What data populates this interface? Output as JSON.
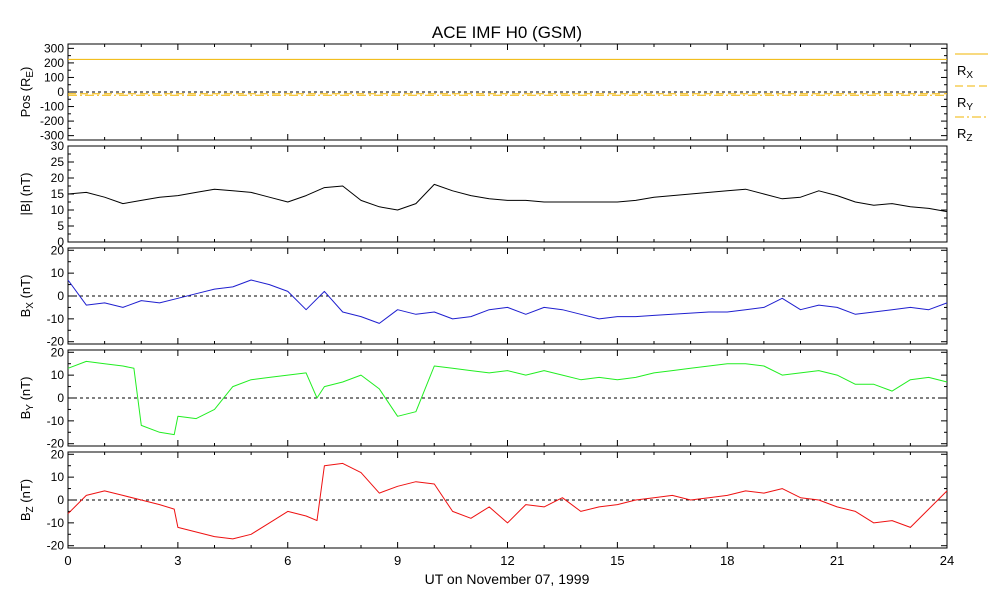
{
  "chart_data": {
    "type": "line",
    "title": "ACE IMF H0 (GSM)",
    "xlabel": "UT on November 07, 1999",
    "x_range": [
      0,
      24
    ],
    "x_ticks": [
      "0",
      "3",
      "6",
      "9",
      "12",
      "15",
      "18",
      "21",
      "24"
    ],
    "x_tick_values": [
      0,
      3,
      6,
      9,
      12,
      15,
      18,
      21,
      24
    ],
    "panels": [
      {
        "id": "pos",
        "ylabel": "Pos (R",
        "ylabel_sub": "E",
        "ylabel_suffix": ")",
        "ylim": [
          -330,
          330
        ],
        "yticks": [
          {
            "value": 300,
            "label": "300"
          },
          {
            "value": 200,
            "label": "200"
          },
          {
            "value": 100,
            "label": "100"
          },
          {
            "value": 0,
            "label": "0"
          },
          {
            "value": -100,
            "label": "-100"
          },
          {
            "value": -200,
            "label": "-200"
          },
          {
            "value": -300,
            "label": "-300"
          }
        ],
        "zero_line": true,
        "series": [
          {
            "label_main": "R",
            "label_sub": "X",
            "color": "#f0b400",
            "dash": "solid",
            "x": [
              0,
              6,
              12,
              18,
              24
            ],
            "values": [
              224,
              224,
              224,
              224,
              224
            ]
          },
          {
            "label_main": "R",
            "label_sub": "Y",
            "color": "#f0b400",
            "dash": "dashed",
            "x": [
              0,
              6,
              12,
              18,
              24
            ],
            "values": [
              -12,
              -12,
              -12,
              -12,
              -12
            ]
          },
          {
            "label_main": "R",
            "label_sub": "Z",
            "color": "#f0b400",
            "dash": "dashdot",
            "x": [
              0,
              6,
              12,
              18,
              24
            ],
            "values": [
              -22,
              -22,
              -22,
              -22,
              -22
            ]
          }
        ]
      },
      {
        "id": "bt",
        "ylabel": "|B| (nT)",
        "ylim": [
          0,
          30
        ],
        "yticks": [
          {
            "value": 30,
            "label": "30"
          },
          {
            "value": 25,
            "label": "25"
          },
          {
            "value": 20,
            "label": "20"
          },
          {
            "value": 15,
            "label": "15"
          },
          {
            "value": 10,
            "label": "10"
          },
          {
            "value": 5,
            "label": "5"
          },
          {
            "value": 0,
            "label": "0"
          }
        ],
        "zero_line": false,
        "series": [
          {
            "color": "#000000",
            "x": [
              0,
              0.5,
              1.0,
              1.5,
              2.0,
              2.5,
              3.0,
              3.5,
              4.0,
              4.5,
              5.0,
              5.5,
              6.0,
              6.5,
              7.0,
              7.5,
              8.0,
              8.5,
              9.0,
              9.5,
              10.0,
              10.5,
              11.0,
              11.5,
              12.0,
              12.5,
              13.0,
              13.5,
              14.0,
              14.5,
              15.0,
              15.5,
              16.0,
              16.5,
              17.0,
              17.5,
              18.0,
              18.5,
              19.0,
              19.5,
              20.0,
              20.5,
              21.0,
              21.5,
              22.0,
              22.5,
              23.0,
              23.5,
              24.0
            ],
            "values": [
              15,
              15.5,
              14,
              12,
              13,
              14,
              14.5,
              15.5,
              16.5,
              16,
              15.5,
              14,
              12.5,
              14.5,
              17,
              17.5,
              13,
              11,
              10,
              12,
              18,
              16,
              14.5,
              13.5,
              13,
              13,
              12.5,
              12.5,
              12.5,
              12.5,
              12.5,
              13,
              14,
              14.5,
              15,
              15.5,
              16,
              16.5,
              15,
              13.5,
              14,
              16,
              14.5,
              12.5,
              11.5,
              12,
              11,
              10.5,
              9.5
            ]
          }
        ]
      },
      {
        "id": "bx",
        "ylabel": "B",
        "ylabel_sub": "X",
        "ylabel_suffix": " (nT)",
        "ylim": [
          -21,
          21
        ],
        "yticks": [
          {
            "value": 20,
            "label": "20"
          },
          {
            "value": 10,
            "label": "10"
          },
          {
            "value": 0,
            "label": "0"
          },
          {
            "value": -10,
            "label": "-10"
          },
          {
            "value": -20,
            "label": "-20"
          }
        ],
        "zero_line": true,
        "series": [
          {
            "color": "#1f1fcf",
            "x": [
              0,
              0.5,
              1.0,
              1.5,
              2.0,
              2.5,
              3.0,
              3.5,
              4.0,
              4.5,
              5.0,
              5.5,
              6.0,
              6.5,
              7.0,
              7.5,
              8.0,
              8.5,
              9.0,
              9.5,
              10.0,
              10.5,
              11.0,
              11.5,
              12.0,
              12.5,
              13.0,
              13.5,
              14.0,
              14.5,
              15.0,
              15.5,
              16.0,
              16.5,
              17.0,
              17.5,
              18.0,
              18.5,
              19.0,
              19.5,
              20.0,
              20.5,
              21.0,
              21.5,
              22.0,
              22.5,
              23.0,
              23.5,
              24.0
            ],
            "values": [
              7,
              -4,
              -3,
              -5,
              -2,
              -3,
              -1,
              1,
              3,
              4,
              7,
              5,
              2,
              -6,
              2,
              -7,
              -9,
              -12,
              -6,
              -8,
              -7,
              -10,
              -9,
              -6,
              -5,
              -8,
              -5,
              -6,
              -8,
              -10,
              -9,
              -9,
              -8.5,
              -8,
              -7.5,
              -7,
              -7,
              -6,
              -5,
              -1,
              -6,
              -4,
              -5,
              -8,
              -7,
              -6,
              -5,
              -6,
              -3
            ]
          }
        ]
      },
      {
        "id": "by",
        "ylabel": "B",
        "ylabel_sub": "Y",
        "ylabel_suffix": " (nT)",
        "ylim": [
          -21,
          21
        ],
        "yticks": [
          {
            "value": 20,
            "label": "20"
          },
          {
            "value": 10,
            "label": "10"
          },
          {
            "value": 0,
            "label": "0"
          },
          {
            "value": -10,
            "label": "-10"
          },
          {
            "value": -20,
            "label": "-20"
          }
        ],
        "zero_line": true,
        "series": [
          {
            "color": "#22ee22",
            "x": [
              0,
              0.5,
              1.0,
              1.5,
              1.8,
              2.0,
              2.5,
              2.9,
              3.0,
              3.5,
              4.0,
              4.5,
              5.0,
              5.5,
              6.0,
              6.5,
              6.8,
              7.0,
              7.5,
              8.0,
              8.5,
              9.0,
              9.5,
              10.0,
              10.5,
              11.0,
              11.5,
              12.0,
              12.5,
              13.0,
              13.5,
              14.0,
              14.5,
              15.0,
              15.5,
              16.0,
              16.5,
              17.0,
              17.5,
              18.0,
              18.5,
              19.0,
              19.5,
              20.0,
              20.5,
              21.0,
              21.5,
              22.0,
              22.5,
              23.0,
              23.5,
              24.0
            ],
            "values": [
              13,
              16,
              15,
              14,
              13,
              -12,
              -15,
              -16,
              -8,
              -9,
              -5,
              5,
              8,
              9,
              10,
              11,
              0,
              5,
              7,
              10,
              4,
              -8,
              -6,
              14,
              13,
              12,
              11,
              12,
              10,
              12,
              10,
              8,
              9,
              8,
              9,
              11,
              12,
              13,
              14,
              15,
              15,
              14,
              10,
              11,
              12,
              10,
              6,
              6,
              3,
              8,
              9,
              7
            ]
          }
        ]
      },
      {
        "id": "bz",
        "ylabel": "B",
        "ylabel_sub": "Z",
        "ylabel_suffix": " (nT)",
        "ylim": [
          -21,
          21
        ],
        "yticks": [
          {
            "value": 20,
            "label": "20"
          },
          {
            "value": 10,
            "label": "10"
          },
          {
            "value": 0,
            "label": "0"
          },
          {
            "value": -10,
            "label": "-10"
          },
          {
            "value": -20,
            "label": "-20"
          }
        ],
        "zero_line": true,
        "series": [
          {
            "color": "#ee1111",
            "x": [
              0,
              0.5,
              1.0,
              1.5,
              2.0,
              2.5,
              2.9,
              3.0,
              3.5,
              4.0,
              4.5,
              5.0,
              5.5,
              6.0,
              6.5,
              6.8,
              7.0,
              7.5,
              8.0,
              8.5,
              9.0,
              9.5,
              10.0,
              10.5,
              11.0,
              11.5,
              12.0,
              12.5,
              13.0,
              13.5,
              14.0,
              14.5,
              15.0,
              15.5,
              16.0,
              16.5,
              17.0,
              17.5,
              18.0,
              18.5,
              19.0,
              19.5,
              20.0,
              20.5,
              21.0,
              21.5,
              22.0,
              22.5,
              23.0,
              23.5,
              24.0
            ],
            "values": [
              -6,
              2,
              4,
              2,
              0,
              -2,
              -4,
              -12,
              -14,
              -16,
              -17,
              -15,
              -10,
              -5,
              -7,
              -9,
              15,
              16,
              12,
              3,
              6,
              8,
              7,
              -5,
              -8,
              -3,
              -10,
              -2,
              -3,
              1,
              -5,
              -3,
              -2,
              0,
              1,
              2,
              0,
              1,
              2,
              4,
              3,
              5,
              1,
              0,
              -3,
              -5,
              -10,
              -9,
              -12,
              -4,
              4
            ]
          }
        ]
      }
    ]
  }
}
